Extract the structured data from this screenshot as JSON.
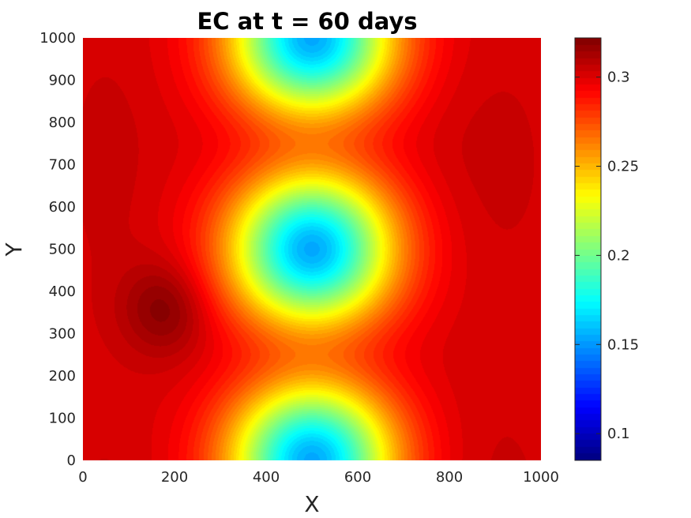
{
  "chart_data": {
    "type": "heatmap",
    "title": "EC at t = 60 days",
    "xlabel": "X",
    "ylabel": "Y",
    "xlim": [
      0,
      1000
    ],
    "ylim": [
      0,
      1000
    ],
    "xticks": [
      0,
      200,
      400,
      600,
      800,
      1000
    ],
    "yticks": [
      0,
      100,
      200,
      300,
      400,
      500,
      600,
      700,
      800,
      900,
      1000
    ],
    "colormap": "jet",
    "colorbar": {
      "range": [
        0.085,
        0.322
      ],
      "ticks": [
        0.1,
        0.15,
        0.2,
        0.25,
        0.3
      ],
      "tick_labels": [
        "0.1",
        "0.15",
        "0.2",
        "0.25",
        "0.3"
      ]
    },
    "field_model": {
      "background": 0.302,
      "channel": {
        "x_center": 500,
        "depth": 0.185,
        "width_sigma": 125
      },
      "channel_modulation": {
        "period": 500,
        "amplitude": 0.6,
        "lows_at_y": [
          0,
          1000
        ],
        "waist_at_y": 500
      },
      "hot_spot": {
        "x": 180,
        "y": 360,
        "value": 0.322
      },
      "side_bands": [
        {
          "x_center": 870,
          "value": 0.305
        },
        {
          "x_center": 60,
          "value": 0.305
        }
      ]
    }
  }
}
